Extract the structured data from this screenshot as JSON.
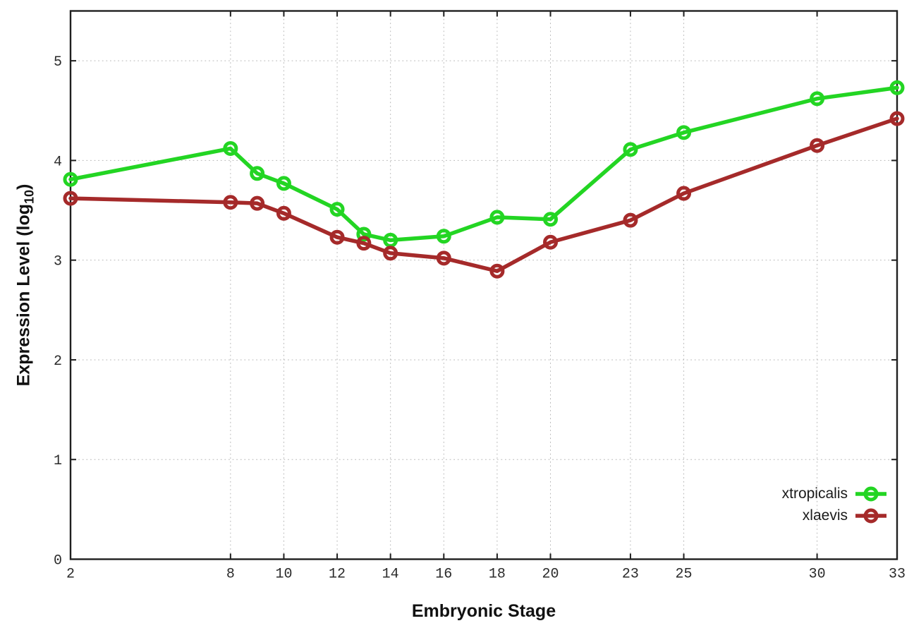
{
  "chart_data": {
    "type": "line",
    "title": "",
    "xlabel": "Embryonic Stage",
    "ylabel": {
      "main": "Expression Level (log",
      "sub": "10",
      "end": ")"
    },
    "x_ticks": [
      2,
      8,
      10,
      12,
      14,
      16,
      18,
      20,
      23,
      25,
      30,
      33
    ],
    "y_ticks": [
      0,
      1,
      2,
      3,
      4,
      5
    ],
    "xlim": [
      2,
      33
    ],
    "ylim": [
      0,
      5.5
    ],
    "grid": true,
    "legend_position": "bottom-right-inside",
    "x": [
      2,
      8,
      9,
      10,
      12,
      13,
      14,
      16,
      18,
      20,
      23,
      25,
      30,
      33
    ],
    "series": [
      {
        "name": "xtropicalis",
        "color": "#23d523",
        "marker": "open-circle",
        "values": [
          3.81,
          4.12,
          3.87,
          3.77,
          3.51,
          3.26,
          3.2,
          3.24,
          3.43,
          3.41,
          4.11,
          4.28,
          4.62,
          4.73
        ]
      },
      {
        "name": "xlaevis",
        "color": "#a52a2a",
        "marker": "open-circle",
        "values": [
          3.62,
          3.58,
          3.57,
          3.47,
          3.23,
          3.17,
          3.07,
          3.02,
          2.89,
          3.18,
          3.4,
          3.67,
          4.15,
          4.42
        ]
      }
    ],
    "colors": {
      "axis": "#1f1f1f",
      "grid": "#b8b8b8",
      "background": "#ffffff"
    }
  }
}
